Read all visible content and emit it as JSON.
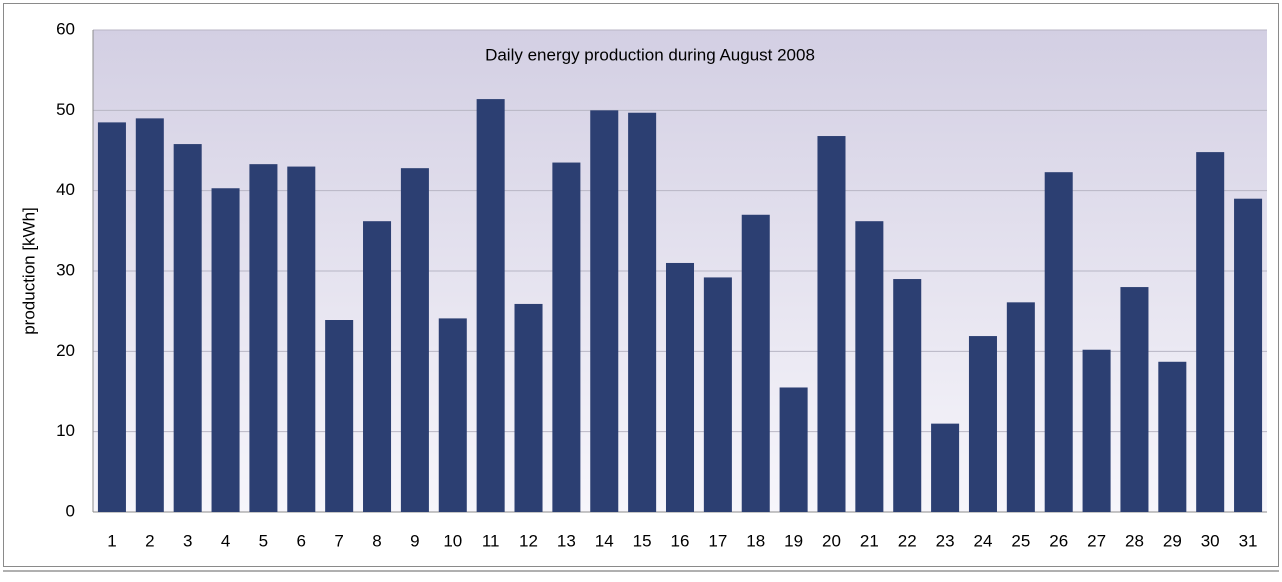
{
  "chart_data": {
    "type": "bar",
    "title": "Daily energy production during August 2008",
    "y_label": "production [kWh]",
    "categories": [
      "1",
      "2",
      "3",
      "4",
      "5",
      "6",
      "7",
      "8",
      "9",
      "10",
      "11",
      "12",
      "13",
      "14",
      "15",
      "16",
      "17",
      "18",
      "19",
      "20",
      "21",
      "22",
      "23",
      "24",
      "25",
      "26",
      "27",
      "28",
      "29",
      "30",
      "31"
    ],
    "values": [
      48.5,
      49,
      45.8,
      40.3,
      43.3,
      43,
      23.9,
      36.2,
      42.8,
      24.1,
      51.4,
      25.9,
      43.5,
      50,
      49.7,
      31,
      29.2,
      37,
      15.5,
      46.8,
      36.2,
      29,
      11,
      21.9,
      26.1,
      42.3,
      20.2,
      28,
      18.7,
      44.8,
      39
    ],
    "color": "#2c3f72",
    "ylim": [
      0,
      60
    ],
    "yticks": [
      0,
      10,
      20,
      30,
      40,
      50,
      60
    ],
    "grid": true
  }
}
